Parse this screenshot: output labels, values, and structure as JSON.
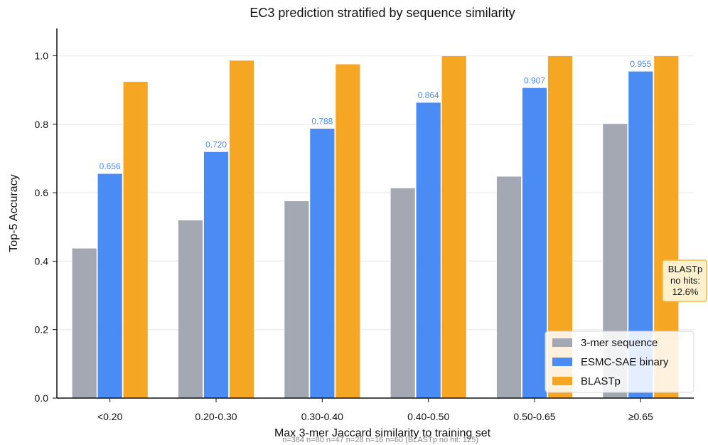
{
  "chart_data": {
    "type": "bar",
    "title": "EC3 prediction stratified by sequence similarity",
    "xlabel": "Max 3-mer Jaccard similarity to training set",
    "ylabel": "Top-5 Accuracy",
    "ylim": [
      0,
      1.08
    ],
    "yticks": [
      "0.0",
      "0.2",
      "0.4",
      "0.6",
      "0.8",
      "1.0"
    ],
    "categories": [
      "<0.20",
      "0.20-0.30",
      "0.30-0.40",
      "0.40-0.50",
      "0.50-0.65",
      "≥0.65"
    ],
    "series": [
      {
        "name": "3-mer sequence",
        "color": "#a3a8b3",
        "values": [
          0.438,
          0.52,
          0.576,
          0.614,
          0.648,
          0.802
        ]
      },
      {
        "name": "ESMC-SAE binary",
        "color": "#4b8cf4",
        "values": [
          0.656,
          0.72,
          0.788,
          0.864,
          0.907,
          0.955
        ]
      },
      {
        "name": "BLASTp",
        "color": "#f5a623",
        "values": [
          0.925,
          0.987,
          0.976,
          1.0,
          1.0,
          1.0
        ]
      }
    ],
    "data_labels": {
      "series": "ESMC-SAE binary",
      "values": [
        "0.656",
        "0.720",
        "0.788",
        "0.864",
        "0.907",
        "0.955"
      ]
    },
    "grid": "horizontal",
    "legend": "lower-right",
    "annotation": {
      "lines": [
        "BLASTp",
        "no hits:",
        "12.6%"
      ]
    },
    "footnote": "n=384  n=80  n=47  n=28  n=16  n=60  (BLASTp no hit: 125)"
  }
}
